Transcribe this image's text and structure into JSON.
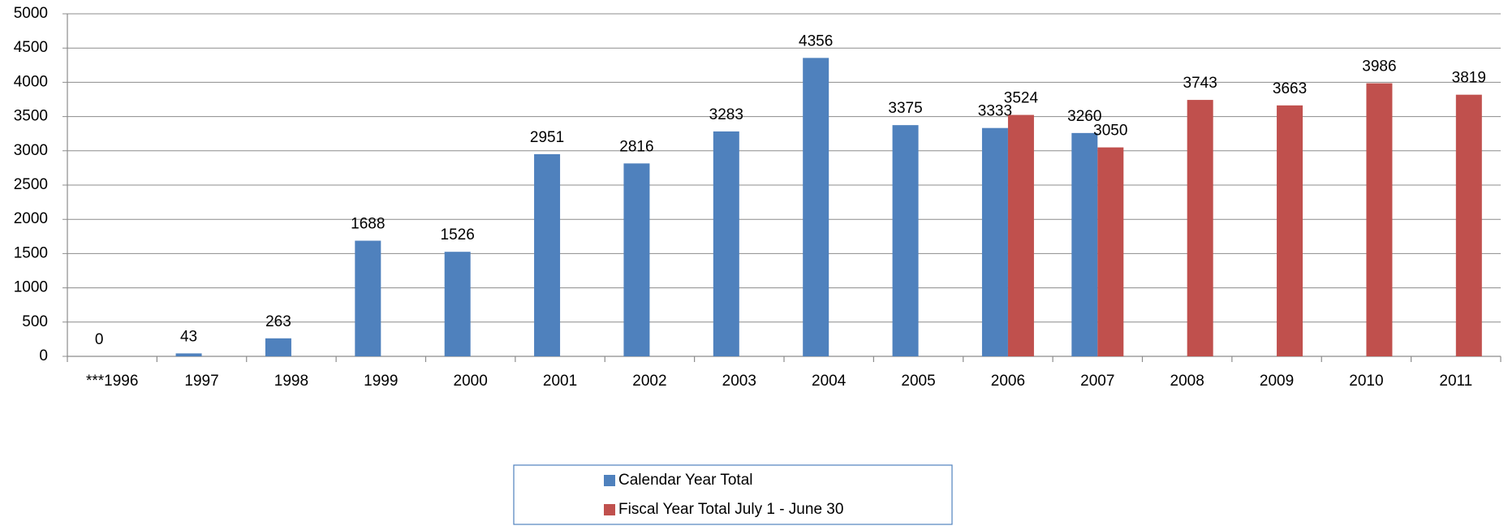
{
  "chart_data": {
    "type": "bar",
    "categories": [
      "***1996",
      "1997",
      "1998",
      "1999",
      "2000",
      "2001",
      "2002",
      "2003",
      "2004",
      "2005",
      "2006",
      "2007",
      "2008",
      "2009",
      "2010",
      "2011"
    ],
    "series": [
      {
        "name": "Calendar Year Total",
        "color": "#4f81bd",
        "values": [
          0,
          43,
          263,
          1688,
          1526,
          2951,
          2816,
          3283,
          4356,
          3375,
          3333,
          3260,
          null,
          null,
          null,
          null
        ]
      },
      {
        "name": "Fiscal Year Total July 1 - June 30",
        "color": "#c0504d",
        "values": [
          null,
          null,
          null,
          null,
          null,
          null,
          null,
          null,
          null,
          null,
          3524,
          3050,
          3743,
          3663,
          3986,
          3819
        ]
      }
    ],
    "ylim": [
      0,
      5000
    ],
    "yticks": [
      0,
      500,
      1000,
      1500,
      2000,
      2500,
      3000,
      3500,
      4000,
      4500,
      5000
    ],
    "grid": true,
    "legend": "bottom"
  }
}
